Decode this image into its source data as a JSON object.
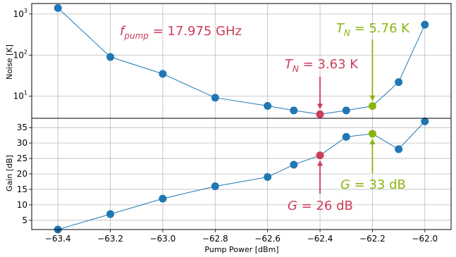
{
  "chart_data": {
    "type": "line",
    "xlabel": "Pump Power [dBm]",
    "x_ticks": [
      "−63.4",
      "−63.2",
      "−63.0",
      "−62.8",
      "−62.6",
      "−62.4",
      "−62.2",
      "−62.0"
    ],
    "xlim": [
      -63.5,
      -61.9
    ],
    "grid": true,
    "colors": {
      "line": "#1f77b4",
      "highlight_red": "#cc3d5a",
      "highlight_green": "#8ab50f",
      "grid": "#bbbbbb"
    },
    "panels": [
      {
        "name": "noise",
        "ylabel": "Noise [K]",
        "yscale": "log",
        "ylim": [
          2.9,
          1800
        ],
        "y_ticks": [
          {
            "value": 10,
            "base": "10",
            "exp": "1"
          },
          {
            "value": 100,
            "base": "10",
            "exp": "2"
          },
          {
            "value": 1000,
            "base": "10",
            "exp": "3"
          }
        ],
        "x": [
          -63.4,
          -63.2,
          -63.0,
          -62.8,
          -62.6,
          -62.5,
          -62.4,
          -62.3,
          -62.2,
          -62.1,
          -62.0
        ],
        "y": [
          1400,
          90,
          35,
          9.2,
          5.8,
          4.5,
          3.63,
          4.5,
          5.76,
          22,
          550
        ],
        "highlights": [
          {
            "x": -62.4,
            "y": 3.63,
            "color": "red"
          },
          {
            "x": -62.2,
            "y": 5.76,
            "color": "green"
          }
        ]
      },
      {
        "name": "gain",
        "ylabel": "Gain [dB]",
        "yscale": "linear",
        "ylim": [
          2,
          38
        ],
        "y_ticks": [
          5,
          10,
          15,
          20,
          25,
          30,
          35
        ],
        "x": [
          -63.4,
          -63.2,
          -63.0,
          -62.8,
          -62.6,
          -62.5,
          -62.4,
          -62.3,
          -62.2,
          -62.1,
          -62.0
        ],
        "y": [
          2,
          7,
          12,
          16,
          19,
          23,
          26,
          32,
          33,
          28,
          37
        ],
        "highlights": [
          {
            "x": -62.4,
            "y": 26,
            "color": "red"
          },
          {
            "x": -62.2,
            "y": 33,
            "color": "green"
          }
        ]
      }
    ],
    "annotations": {
      "fpump": {
        "main": "f",
        "sub": "pump",
        "rest": " = 17.975 GHz"
      },
      "tn_red": {
        "main": "T",
        "sub": "N",
        "rest": " = 3.63 K"
      },
      "tn_green": {
        "main": "T",
        "sub": "N",
        "rest": " = 5.76 K"
      },
      "g_red": {
        "main": "G",
        "rest": " = 26 dB"
      },
      "g_green": {
        "main": "G",
        "rest": " = 33 dB"
      }
    }
  }
}
